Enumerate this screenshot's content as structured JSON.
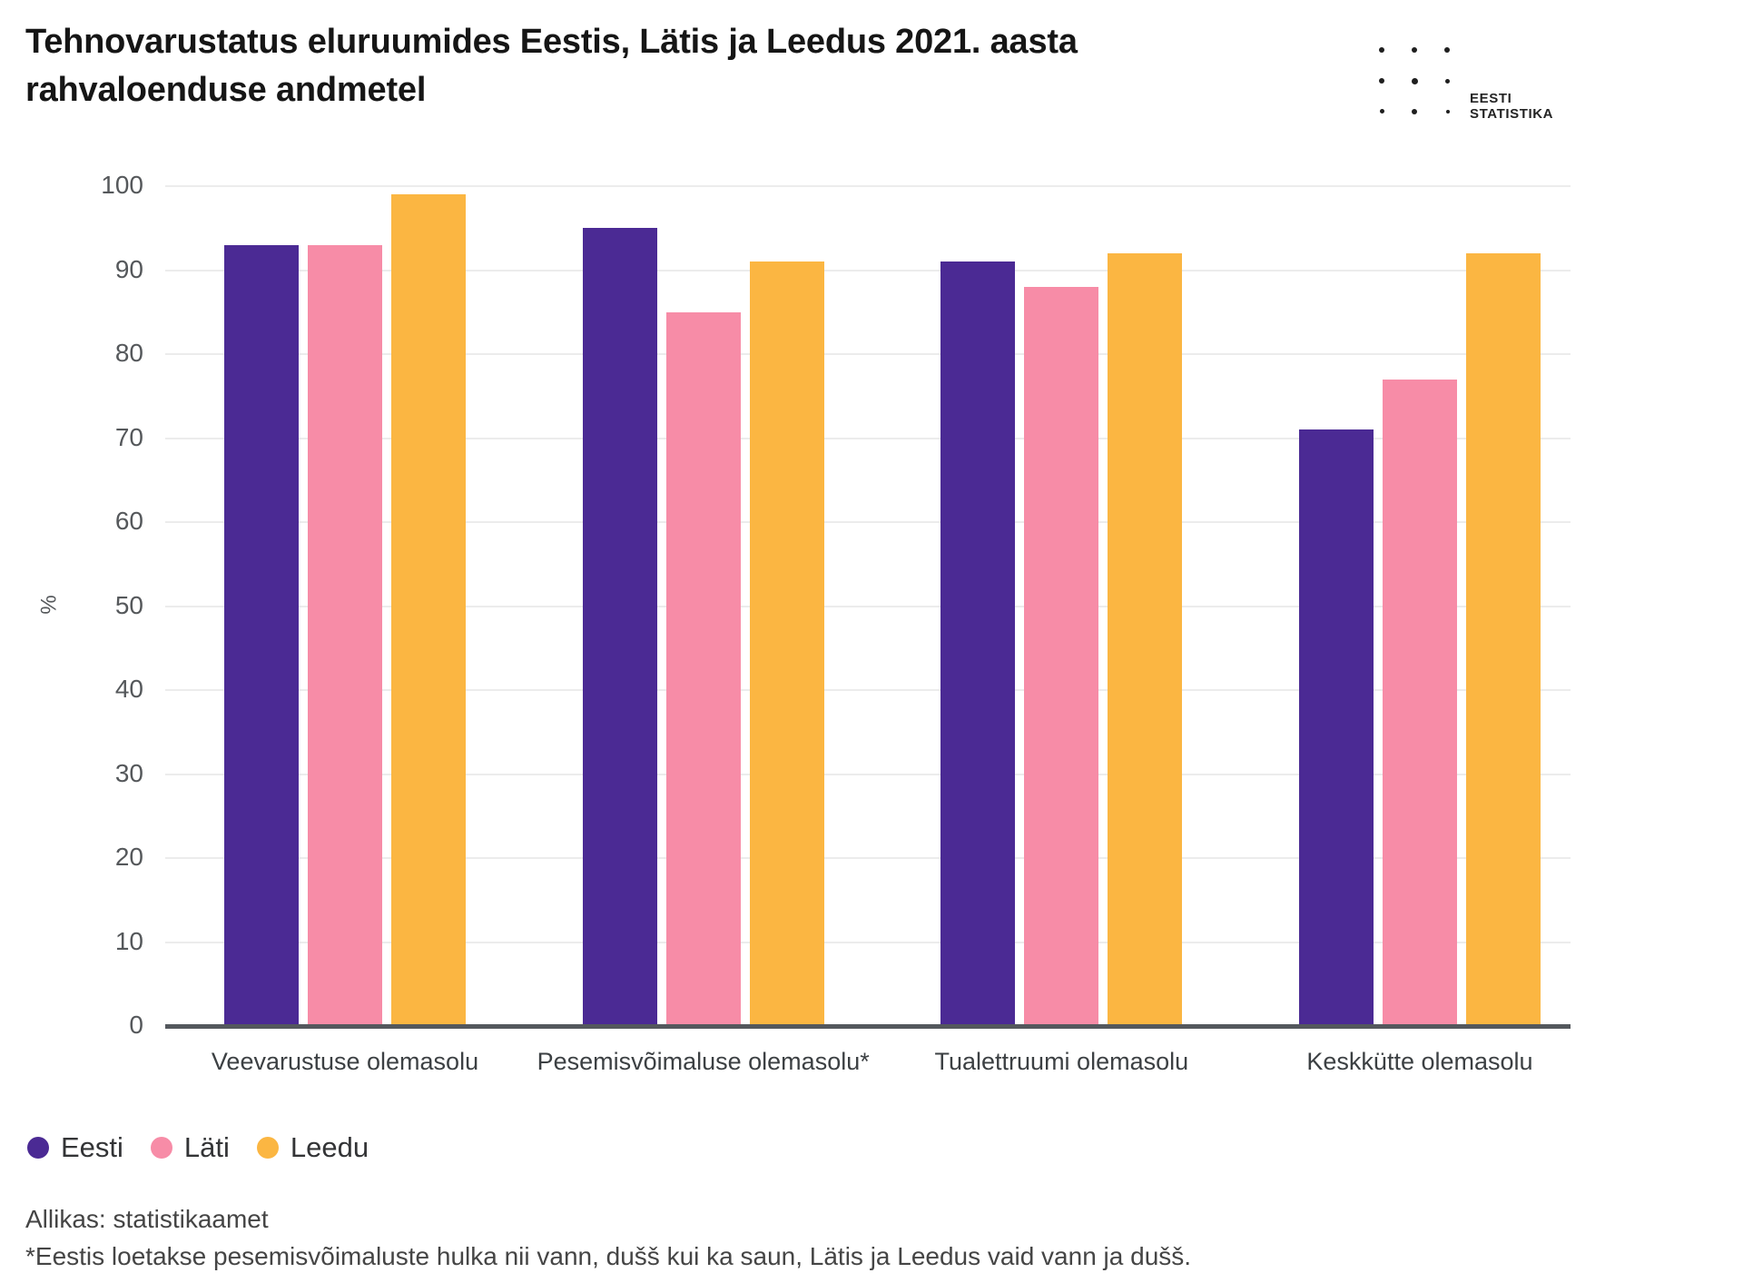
{
  "header": {
    "title": "Tehnovarustatus eluruumides Eestis, Lätis ja Leedus 2021. aasta rahvaloenduse andmetel",
    "logo": {
      "line1": "EESTI",
      "line2": "STATISTIKA"
    }
  },
  "chart_data": {
    "type": "bar",
    "title": "Tehnovarustatus eluruumides Eestis, Lätis ja Leedus 2021. aasta rahvaloenduse andmetel",
    "categories": [
      "Veevarustuse olemasolu",
      "Pesemisvõimaluse olemasolu*",
      "Tualettruumi olemasolu",
      "Keskkütte olemasolu"
    ],
    "series": [
      {
        "name": "Eesti",
        "color": "#4b2a94",
        "values": [
          93,
          95,
          91,
          71
        ]
      },
      {
        "name": "Läti",
        "color": "#f78ca7",
        "values": [
          93,
          85,
          88,
          77
        ]
      },
      {
        "name": "Leedu",
        "color": "#fbb642",
        "values": [
          99,
          91,
          92,
          92
        ]
      }
    ],
    "xlabel": "",
    "ylabel": "%",
    "ylim": [
      0,
      100
    ],
    "ytick_step": 10,
    "yticks": [
      0,
      10,
      20,
      30,
      40,
      50,
      60,
      70,
      80,
      90,
      100
    ],
    "grid": true,
    "legend_position": "bottom-left",
    "colors": {
      "axis": "#54585d",
      "gridline": "#ececec",
      "tick_text": "#55585b"
    }
  },
  "footer": {
    "source": "Allikas: statistikaamet",
    "footnote": "*Eestis loetakse pesemisvõimaluste hulka nii vann, dušš kui ka saun, Lätis ja Leedus vaid vann ja dušš."
  }
}
